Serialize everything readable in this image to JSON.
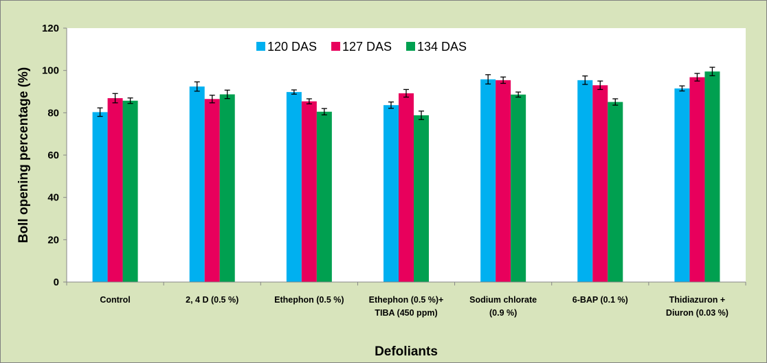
{
  "chart_data": {
    "type": "bar",
    "xlabel": "Defoliants",
    "ylabel": "Boll opening percentage (%)",
    "ylim": [
      0,
      120
    ],
    "yticks": [
      0,
      20,
      40,
      60,
      80,
      100,
      120
    ],
    "grid": false,
    "legend_position": "top-center",
    "categories": [
      [
        "Control"
      ],
      [
        "2, 4 D (0.5 %)"
      ],
      [
        "Ethephon (0.5 %)"
      ],
      [
        "Ethephon (0.5 %)+",
        "TIBA (450 ppm)"
      ],
      [
        "Sodium chlorate",
        "(0.9 %)"
      ],
      [
        "6-BAP (0.1 %)"
      ],
      [
        "Thidiazuron +",
        "Diuron (0.03 %)"
      ]
    ],
    "series": [
      {
        "name": "120 DAS",
        "color": "#00b0f0",
        "values": [
          80.3,
          92.4,
          89.8,
          83.6,
          95.8,
          95.4,
          91.5
        ],
        "errors": [
          2.0,
          2.2,
          1.0,
          1.5,
          2.2,
          2.0,
          1.2
        ]
      },
      {
        "name": "127 DAS",
        "color": "#e8005c",
        "values": [
          86.9,
          86.5,
          85.4,
          89.2,
          95.4,
          93.0,
          96.8
        ],
        "errors": [
          2.2,
          1.8,
          1.2,
          1.8,
          1.5,
          2.0,
          1.8
        ]
      },
      {
        "name": "134 DAS",
        "color": "#00a050",
        "values": [
          85.7,
          88.7,
          80.5,
          78.8,
          88.6,
          85.1,
          99.5
        ],
        "errors": [
          1.3,
          2.0,
          1.5,
          2.0,
          1.2,
          1.5,
          2.0
        ]
      }
    ]
  },
  "colors": {
    "background": "#d8e4bc",
    "plot_background": "#ffffff",
    "frame": "#7f7f7f"
  }
}
